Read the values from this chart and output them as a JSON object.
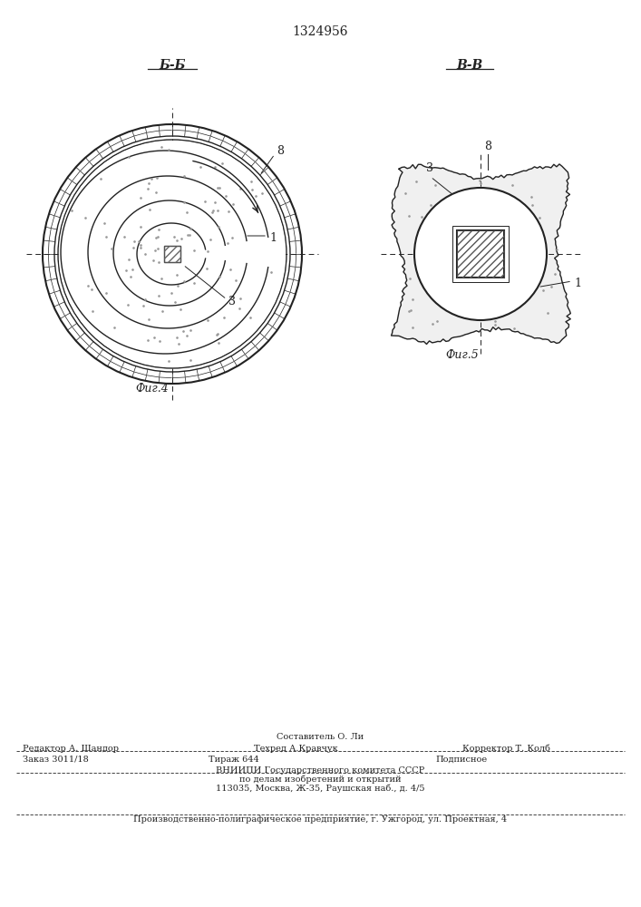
{
  "title": "1324956",
  "title_fontsize": 11,
  "fig4_label": "Б-Б",
  "fig5_label": "В-В",
  "caption4": "Фиг.4",
  "caption5": "Фиг.5",
  "bg_color": "#ffffff",
  "line_color": "#222222",
  "label_8_fig4": "8",
  "label_1_fig4": "1",
  "label_3_fig4": "3",
  "label_8_fig5": "8",
  "label_1_fig5": "1",
  "label_3_fig5": "3",
  "footer_line1_center": "Составитель О. Ли",
  "footer_line2_left": "Редактор А. Шандор",
  "footer_line2_center": "Техред А.Кравчук",
  "footer_line2_right": "Корректор Т. Колб",
  "footer_line3_left": "Заказ 3011/18",
  "footer_line3_center": "Тираж 644",
  "footer_line3_right": "Подписное",
  "footer_line4": "ВНИИПИ Государственного комитета СССР",
  "footer_line5": "по делам изобретений и открытий",
  "footer_line6": "113035, Москва, Ж-35, Раушская наб., д. 4/5",
  "footer_line7": "Производственно-полиграфическое предприятие, г. Ужгород, ул. Проектная, 4"
}
